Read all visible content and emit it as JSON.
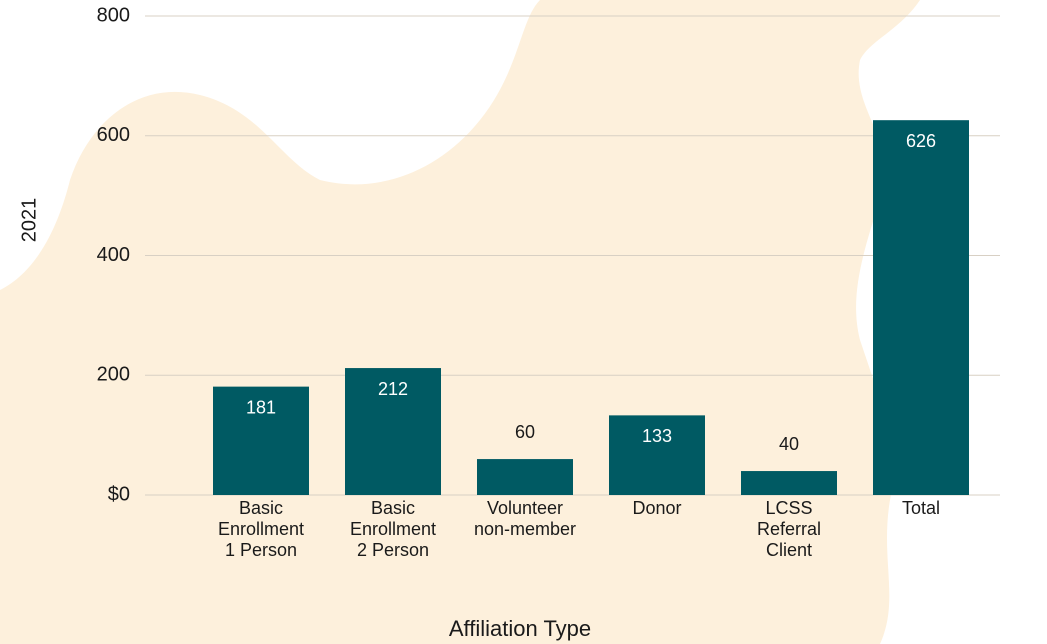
{
  "chart_data": {
    "type": "bar",
    "y_axis_label": "2021",
    "x_axis_label": "Affiliation Type",
    "categories": [
      "Basic\nEnrollment\n1 Person",
      "Basic\nEnrollment\n2 Person",
      "Volunteer\nnon-member",
      "Donor",
      "LCSS\nReferral\nClient",
      "Total"
    ],
    "values": [
      181,
      212,
      60,
      133,
      40,
      626
    ],
    "color": "#005a63",
    "ylim": [
      0,
      800
    ],
    "yticks": [
      {
        "value": 0,
        "label": "$0"
      },
      200,
      400,
      600,
      800
    ],
    "grid": true
  }
}
